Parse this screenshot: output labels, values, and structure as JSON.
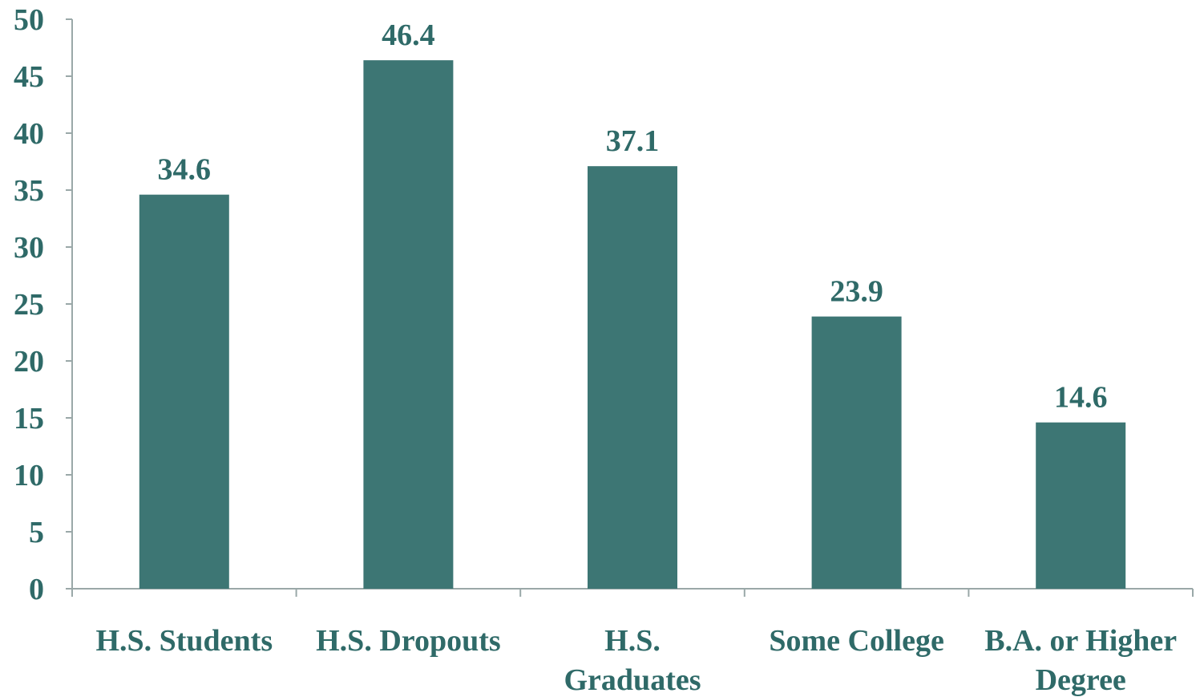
{
  "chart_data": {
    "type": "bar",
    "title": "",
    "xlabel": "",
    "ylabel": "",
    "ylim": [
      0,
      50
    ],
    "yticks": [
      0,
      5,
      10,
      15,
      20,
      25,
      30,
      35,
      40,
      45,
      50
    ],
    "grid": false,
    "legend": "none",
    "categories": [
      [
        "H.S. Students"
      ],
      [
        "H.S. Dropouts"
      ],
      [
        "H.S.",
        "Graduates"
      ],
      [
        "Some College"
      ],
      [
        "B.A. or Higher",
        "Degree"
      ]
    ],
    "values": [
      34.6,
      46.4,
      37.1,
      23.9,
      14.6
    ],
    "data_labels": [
      "34.6",
      "46.4",
      "37.1",
      "23.9",
      "14.6"
    ],
    "colors": {
      "bar": "#3d7674",
      "text": "#2f6a68",
      "axis": "#9aa8a8"
    }
  }
}
